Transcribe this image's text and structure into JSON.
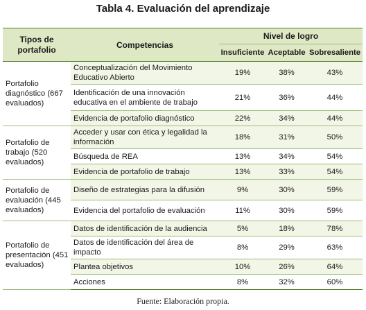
{
  "title": "Tabla 4. Evaluación del aprendizaje",
  "headers": {
    "types": "Tipos de portafolio",
    "competencias": "Competencias",
    "nivel": "Nivel de logro",
    "insuficiente": "Insuficiente",
    "aceptable": "Aceptable",
    "sobresaliente": "Sobresaliente"
  },
  "groups": [
    {
      "type": "Portafolio diagnóstico (667 evaluados)",
      "rows": [
        {
          "competencia": "Conceptualización del Movimiento Educativo Abierto",
          "insuficiente": "19%",
          "aceptable": "38%",
          "sobresaliente": "43%"
        },
        {
          "competencia": "Identificación de una innovación educativa en el ambiente de trabajo",
          "insuficiente": "21%",
          "aceptable": "36%",
          "sobresaliente": "44%"
        },
        {
          "competencia": "Evidencia de portafolio diagnóstico",
          "insuficiente": "22%",
          "aceptable": "34%",
          "sobresaliente": "44%"
        }
      ]
    },
    {
      "type": "Portafolio de trabajo (520 evaluados)",
      "rows": [
        {
          "competencia": "Acceder y usar con ética y legalidad la información",
          "insuficiente": "18%",
          "aceptable": "31%",
          "sobresaliente": "50%"
        },
        {
          "competencia": "Búsqueda de REA",
          "insuficiente": "13%",
          "aceptable": "34%",
          "sobresaliente": "54%"
        },
        {
          "competencia": "Evidencia de portafolio de trabajo",
          "insuficiente": "13%",
          "aceptable": "33%",
          "sobresaliente": "54%"
        }
      ]
    },
    {
      "type": "Portafolio de evaluación (445 evaluados)",
      "rows": [
        {
          "competencia": "Diseño de estrategias para la difusión",
          "insuficiente": "9%",
          "aceptable": "30%",
          "sobresaliente": "59%"
        },
        {
          "competencia": "Evidencia del portafolio de evaluación",
          "insuficiente": "11%",
          "aceptable": "30%",
          "sobresaliente": "59%"
        }
      ]
    },
    {
      "type": "Portafolio de presentación (451 evaluados)",
      "rows": [
        {
          "competencia": "Datos de identificación de la audiencia",
          "insuficiente": "5%",
          "aceptable": "18%",
          "sobresaliente": "78%"
        },
        {
          "competencia": "Datos de identificación del área de impacto",
          "insuficiente": "8%",
          "aceptable": "29%",
          "sobresaliente": "63%"
        },
        {
          "competencia": "Plantea objetivos",
          "insuficiente": "10%",
          "aceptable": "26%",
          "sobresaliente": "64%"
        },
        {
          "competencia": "Acciones",
          "insuficiente": "8%",
          "aceptable": "32%",
          "sobresaliente": "60%"
        }
      ]
    }
  ],
  "footer": "Fuente: Elaboración propia.",
  "colors": {
    "header_bg": "#dfe8c4",
    "row_shade": "#f2f6e6",
    "rule": "#4a7a28"
  }
}
